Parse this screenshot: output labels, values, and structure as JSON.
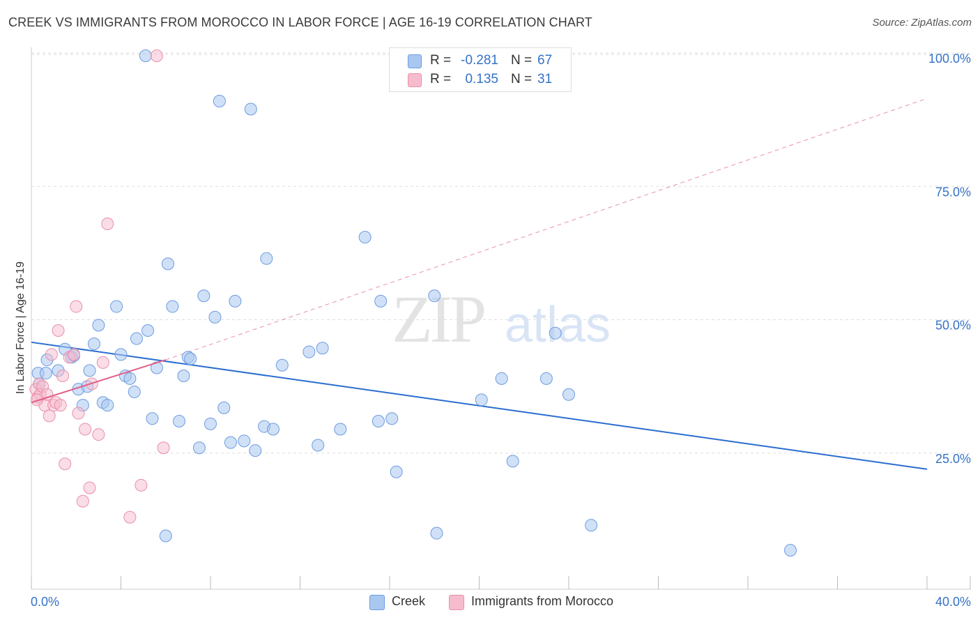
{
  "title": "CREEK VS IMMIGRANTS FROM MOROCCO IN LABOR FORCE | AGE 16-19 CORRELATION CHART",
  "source": "Source: ZipAtlas.com",
  "watermark": {
    "zip": "ZIP",
    "atlas": "atlas"
  },
  "legend_top": {
    "rows": [
      {
        "r_label": "R =",
        "r_value": "-0.281",
        "n_label": "N =",
        "n_value": "67"
      },
      {
        "r_label": "R =",
        "r_value": "0.135",
        "n_label": "N =",
        "n_value": "31"
      }
    ]
  },
  "colors": {
    "blue_fill": "#a9c8f0",
    "blue_stroke": "#6d9be0",
    "blue_line": "#2a6dd0",
    "pink_fill": "#f6bccd",
    "pink_stroke": "#e890aa",
    "pink_line": "#e0608a",
    "grid": "#dddddd",
    "axis_text": "#3572c6"
  },
  "chart_data": {
    "type": "scatter",
    "title": "CREEK VS IMMIGRANTS FROM MOROCCO IN LABOR FORCE | AGE 16-19 CORRELATION CHART",
    "xlabel": "",
    "ylabel": "In Labor Force | Age 16-19",
    "xlim": [
      0,
      40
    ],
    "ylim": [
      0,
      103
    ],
    "x_tick_labels": [
      "0.0%",
      "40.0%"
    ],
    "y_ticks": [
      25,
      50,
      75,
      100
    ],
    "y_tick_labels": [
      "25.0%",
      "50.0%",
      "75.0%",
      "100.0%"
    ],
    "legend_position": "bottom",
    "series": [
      {
        "name": "Creek",
        "color": "#a9c8f0",
        "points": [
          [
            0.3,
            40.5
          ],
          [
            0.7,
            43
          ],
          [
            0.65,
            40.5
          ],
          [
            1.2,
            41
          ],
          [
            1.5,
            45
          ],
          [
            1.8,
            43.5
          ],
          [
            1.9,
            43.8
          ],
          [
            2.1,
            37.5
          ],
          [
            2.3,
            34.5
          ],
          [
            2.5,
            38
          ],
          [
            2.8,
            46
          ],
          [
            3.0,
            49.5
          ],
          [
            3.2,
            35
          ],
          [
            3.4,
            34.5
          ],
          [
            3.8,
            53
          ],
          [
            4.0,
            44
          ],
          [
            4.2,
            40
          ],
          [
            4.4,
            39.5
          ],
          [
            4.6,
            37
          ],
          [
            4.7,
            47
          ],
          [
            5.2,
            48.5
          ],
          [
            5.1,
            100
          ],
          [
            5.4,
            32
          ],
          [
            5.6,
            41.5
          ],
          [
            6.0,
            10
          ],
          [
            6.1,
            61
          ],
          [
            6.3,
            53
          ],
          [
            6.6,
            31.5
          ],
          [
            6.8,
            40
          ],
          [
            7.0,
            43.5
          ],
          [
            7.1,
            43.2
          ],
          [
            7.5,
            26.5
          ],
          [
            7.7,
            55
          ],
          [
            8.0,
            31
          ],
          [
            8.2,
            51
          ],
          [
            8.4,
            91.5
          ],
          [
            8.6,
            34
          ],
          [
            8.9,
            27.5
          ],
          [
            9.1,
            54
          ],
          [
            9.5,
            27.8
          ],
          [
            9.8,
            90
          ],
          [
            10.0,
            26
          ],
          [
            10.4,
            30.5
          ],
          [
            10.5,
            62
          ],
          [
            10.8,
            30
          ],
          [
            11.2,
            42
          ],
          [
            12.4,
            44.5
          ],
          [
            12.8,
            27
          ],
          [
            13.0,
            45.2
          ],
          [
            13.8,
            30
          ],
          [
            14.9,
            66
          ],
          [
            15.5,
            31.5
          ],
          [
            15.6,
            54
          ],
          [
            16.1,
            32
          ],
          [
            16.3,
            22
          ],
          [
            18.0,
            55
          ],
          [
            18.1,
            10.5
          ],
          [
            20.1,
            35.5
          ],
          [
            21.0,
            39.5
          ],
          [
            21.5,
            24
          ],
          [
            23.0,
            39.5
          ],
          [
            23.4,
            48
          ],
          [
            24.0,
            36.5
          ],
          [
            25.0,
            12
          ],
          [
            33.9,
            7.3
          ],
          [
            0.35,
            38.5
          ],
          [
            2.6,
            41
          ]
        ],
        "trend": {
          "x": [
            0,
            40
          ],
          "y": [
            46.3,
            22.5
          ]
        }
      },
      {
        "name": "Immigrants from Morocco",
        "color": "#f6bccd",
        "points": [
          [
            0.2,
            37.5
          ],
          [
            0.3,
            36
          ],
          [
            0.35,
            38.5
          ],
          [
            0.4,
            36.5
          ],
          [
            0.5,
            38
          ],
          [
            0.6,
            34.5
          ],
          [
            0.7,
            36.5
          ],
          [
            0.8,
            32.5
          ],
          [
            0.9,
            44
          ],
          [
            1.0,
            34.5
          ],
          [
            1.1,
            35
          ],
          [
            1.2,
            48.5
          ],
          [
            1.3,
            34.5
          ],
          [
            1.4,
            40
          ],
          [
            1.5,
            23.5
          ],
          [
            1.7,
            43.5
          ],
          [
            1.9,
            44
          ],
          [
            2.0,
            53
          ],
          [
            2.1,
            33
          ],
          [
            2.3,
            16.5
          ],
          [
            2.4,
            30
          ],
          [
            2.6,
            19
          ],
          [
            2.7,
            38.5
          ],
          [
            3.0,
            29
          ],
          [
            3.2,
            42.5
          ],
          [
            3.4,
            68.5
          ],
          [
            4.4,
            13.5
          ],
          [
            4.9,
            19.5
          ],
          [
            5.6,
            100
          ],
          [
            5.9,
            26.5
          ],
          [
            0.25,
            35.5
          ]
        ],
        "trend": {
          "x": [
            0,
            6.0
          ],
          "y": [
            35.0,
            43.0
          ]
        },
        "trend_extension": {
          "x": [
            6.0,
            40
          ],
          "y": [
            43.0,
            92.0
          ]
        }
      }
    ]
  }
}
